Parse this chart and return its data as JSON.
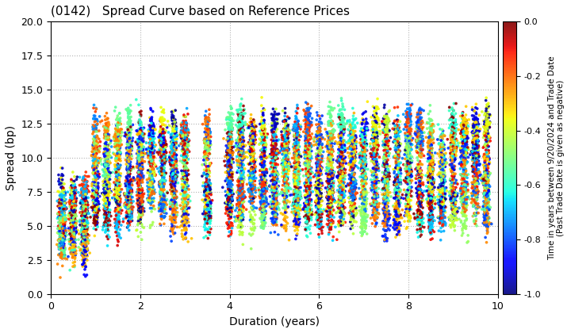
{
  "title": "(0142)   Spread Curve based on Reference Prices",
  "xlabel": "Duration (years)",
  "ylabel": "Spread (bp)",
  "xlim": [
    0,
    10
  ],
  "ylim": [
    0.0,
    20.0
  ],
  "yticks": [
    0.0,
    2.5,
    5.0,
    7.5,
    10.0,
    12.5,
    15.0,
    17.5,
    20.0
  ],
  "xticks": [
    0,
    2,
    4,
    6,
    8,
    10
  ],
  "colorbar_label_line1": "Time in years between 9/20/2024 and Trade Date",
  "colorbar_label_line2": "(Past Trade Date is given as negative)",
  "cbar_vmin": -1.0,
  "cbar_vmax": 0.0,
  "cbar_ticks": [
    0.0,
    -0.2,
    -0.4,
    -0.6,
    -0.8,
    -1.0
  ],
  "seed": 1234
}
